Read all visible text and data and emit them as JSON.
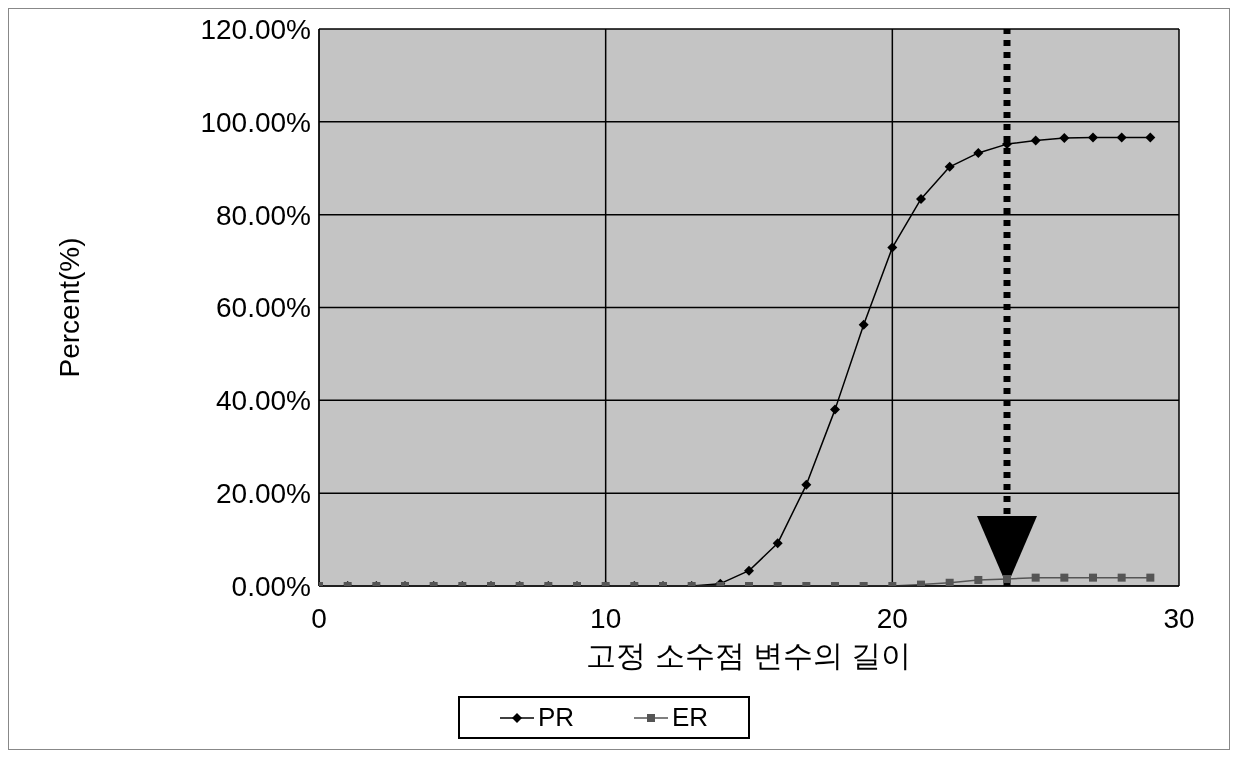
{
  "chart_data": {
    "type": "line",
    "xlabel": "고정 소수점 변수의 길이",
    "ylabel": "Percent(%)",
    "xlim": [
      0,
      30
    ],
    "xticks": [
      0,
      10,
      20,
      30
    ],
    "ylim": [
      0,
      120
    ],
    "yticks": [
      {
        "value": 0,
        "label": "0.00%"
      },
      {
        "value": 20,
        "label": "20.00%"
      },
      {
        "value": 40,
        "label": "40.00%"
      },
      {
        "value": 60,
        "label": "60.00%"
      },
      {
        "value": 80,
        "label": "80.00%"
      },
      {
        "value": 100,
        "label": "100.00%"
      },
      {
        "value": 120,
        "label": "120.00%"
      }
    ],
    "grid": true,
    "legend": "bottom",
    "x": [
      0,
      1,
      2,
      3,
      4,
      5,
      6,
      7,
      8,
      9,
      10,
      11,
      12,
      13,
      14,
      15,
      16,
      17,
      18,
      19,
      20,
      21,
      22,
      23,
      24,
      25,
      26,
      27,
      28,
      29
    ],
    "series": [
      {
        "name": "PR",
        "color": "#000000",
        "marker": "diamond",
        "values": [
          0,
          0,
          0,
          0,
          0,
          0,
          0,
          0,
          0,
          0,
          0,
          0,
          0,
          0,
          0.5,
          3.3,
          9.2,
          21.8,
          38,
          56.3,
          72.9,
          83.4,
          90.3,
          93.3,
          95.2,
          96,
          96.5,
          96.6,
          96.6,
          96.6
        ]
      },
      {
        "name": "ER",
        "color": "#555555",
        "marker": "square",
        "values": [
          0,
          0,
          0,
          0,
          0,
          0,
          0,
          0,
          0,
          0,
          0,
          0,
          0,
          0,
          0,
          0,
          0,
          0,
          0,
          0,
          0,
          0.3,
          0.7,
          1.3,
          1.5,
          1.8,
          1.8,
          1.8,
          1.8,
          1.8
        ]
      }
    ],
    "ref_lines": [
      {
        "axis": "x",
        "value": 24,
        "color": "#000000",
        "line_style": "dotted"
      }
    ]
  }
}
